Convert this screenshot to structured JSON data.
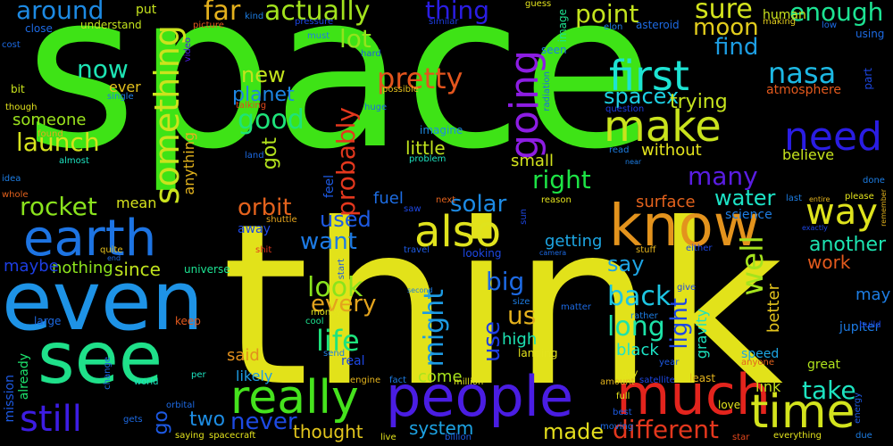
{
  "wordcloud": {
    "background": "#000000",
    "words": [
      {
        "text": "space",
        "color": "#3ee316"
      },
      {
        "text": "think",
        "color": "#e2e21a"
      },
      {
        "text": "even",
        "color": "#1e93e6"
      },
      {
        "text": "see",
        "color": "#1fe08a"
      },
      {
        "text": "people",
        "color": "#4a1de3"
      },
      {
        "text": "much",
        "color": "#e3241d"
      },
      {
        "text": "know",
        "color": "#e3931d"
      },
      {
        "text": "earth",
        "color": "#1d74e3"
      },
      {
        "text": "really",
        "color": "#45e31d"
      },
      {
        "text": "time",
        "color": "#d3e31d"
      },
      {
        "text": "also",
        "color": "#e0e31d"
      },
      {
        "text": "make",
        "color": "#c9e31d"
      },
      {
        "text": "still",
        "color": "#3d1de3"
      },
      {
        "text": "need",
        "color": "#2a1de3"
      },
      {
        "text": "way",
        "color": "#dfe31d"
      },
      {
        "text": "first",
        "color": "#1de3d3"
      },
      {
        "text": "going",
        "color": "#8d1de3"
      },
      {
        "text": "something",
        "color": "#cbe31d"
      },
      {
        "text": "rocket",
        "color": "#8ae31d"
      },
      {
        "text": "launch",
        "color": "#d6e31d"
      },
      {
        "text": "good",
        "color": "#1de37a"
      },
      {
        "text": "nasa",
        "color": "#1db8e3"
      },
      {
        "text": "pretty",
        "color": "#e3551d"
      },
      {
        "text": "actually",
        "color": "#a2e31d"
      },
      {
        "text": "around",
        "color": "#1d8ae3"
      },
      {
        "text": "thing",
        "color": "#2a1de3"
      },
      {
        "text": "far",
        "color": "#e3b01d"
      },
      {
        "text": "point",
        "color": "#c3e31d"
      },
      {
        "text": "sure",
        "color": "#d3e31d"
      },
      {
        "text": "enough",
        "color": "#1de393"
      },
      {
        "text": "moon",
        "color": "#e3cd1d"
      },
      {
        "text": "find",
        "color": "#1d9ee3"
      },
      {
        "text": "now",
        "color": "#1de3b3"
      },
      {
        "text": "lot",
        "color": "#93e31d"
      },
      {
        "text": "new",
        "color": "#c3e31d"
      },
      {
        "text": "planet",
        "color": "#1d86e3"
      },
      {
        "text": "got",
        "color": "#b3e31d"
      },
      {
        "text": "probably",
        "color": "#e3371d"
      },
      {
        "text": "spacex",
        "color": "#1dd1e3"
      },
      {
        "text": "trying",
        "color": "#c5e31d"
      },
      {
        "text": "many",
        "color": "#5a1de3"
      },
      {
        "text": "right",
        "color": "#1de345"
      },
      {
        "text": "solar",
        "color": "#1d8ae3"
      },
      {
        "text": "orbit",
        "color": "#e3621d"
      },
      {
        "text": "used",
        "color": "#1d5ae3"
      },
      {
        "text": "want",
        "color": "#1d7ae3"
      },
      {
        "text": "water",
        "color": "#1de3c6"
      },
      {
        "text": "look",
        "color": "#8ae31d"
      },
      {
        "text": "every",
        "color": "#e3a31d"
      },
      {
        "text": "life",
        "color": "#1de37d"
      },
      {
        "text": "big",
        "color": "#1d6ae3"
      },
      {
        "text": "back",
        "color": "#1dc6e3"
      },
      {
        "text": "say",
        "color": "#1da3e3"
      },
      {
        "text": "us",
        "color": "#e3b01d"
      },
      {
        "text": "long",
        "color": "#1de3a8"
      },
      {
        "text": "might",
        "color": "#1d9be3"
      },
      {
        "text": "use",
        "color": "#1d3ee3"
      },
      {
        "text": "light",
        "color": "#1d47e3"
      },
      {
        "text": "well",
        "color": "#a5e31d"
      },
      {
        "text": "take",
        "color": "#1de3c0"
      },
      {
        "text": "another",
        "color": "#1de3b0"
      },
      {
        "text": "work",
        "color": "#e35a1d"
      },
      {
        "text": "little",
        "color": "#c0e31d"
      },
      {
        "text": "small",
        "color": "#d3e31d"
      },
      {
        "text": "without",
        "color": "#e3e31d"
      },
      {
        "text": "believe",
        "color": "#c6e31d"
      },
      {
        "text": "surface",
        "color": "#e3621d"
      },
      {
        "text": "science",
        "color": "#1d7de3"
      },
      {
        "text": "fuel",
        "color": "#1d6de3"
      },
      {
        "text": "getting",
        "color": "#1da6e3"
      },
      {
        "text": "never",
        "color": "#1d4ae3"
      },
      {
        "text": "two",
        "color": "#1d8de3"
      },
      {
        "text": "thought",
        "color": "#e3c61d"
      },
      {
        "text": "made",
        "color": "#e3dd1d"
      },
      {
        "text": "different",
        "color": "#e3371d"
      },
      {
        "text": "system",
        "color": "#1da3e3"
      },
      {
        "text": "come",
        "color": "#a8e31d"
      },
      {
        "text": "since",
        "color": "#c0e31d"
      },
      {
        "text": "nothing",
        "color": "#8de31d"
      },
      {
        "text": "maybe",
        "color": "#1d3ee3"
      },
      {
        "text": "mean",
        "color": "#d6e31d"
      },
      {
        "text": "someone",
        "color": "#9be31d"
      },
      {
        "text": "human",
        "color": "#c9e31d"
      },
      {
        "text": "atmosphere",
        "color": "#e3591d"
      },
      {
        "text": "black",
        "color": "#1de3c6"
      },
      {
        "text": "high",
        "color": "#1de3b3"
      },
      {
        "text": "better",
        "color": "#e3c31d"
      },
      {
        "text": "gravity",
        "color": "#1de3bd"
      },
      {
        "text": "speed",
        "color": "#1da6e3"
      },
      {
        "text": "link",
        "color": "#c6e31d"
      },
      {
        "text": "may",
        "color": "#1d7de3"
      },
      {
        "text": "jupiter",
        "color": "#1d7ae3"
      },
      {
        "text": "great",
        "color": "#b0e31d"
      },
      {
        "text": "said",
        "color": "#e3901d"
      },
      {
        "text": "likely",
        "color": "#1d9be3"
      },
      {
        "text": "real",
        "color": "#1d47e3"
      },
      {
        "text": "already",
        "color": "#1de36d"
      },
      {
        "text": "mission",
        "color": "#1d5ae3"
      },
      {
        "text": "go",
        "color": "#1d59e3"
      },
      {
        "text": "put",
        "color": "#c6e31d"
      },
      {
        "text": "kind",
        "color": "#1d7de3"
      },
      {
        "text": "pressure",
        "color": "#1d47e3"
      },
      {
        "text": "understand",
        "color": "#c3e31d"
      },
      {
        "text": "similar",
        "color": "#1d3ee3"
      },
      {
        "text": "guess",
        "color": "#e3e31d"
      },
      {
        "text": "image",
        "color": "#1de390"
      },
      {
        "text": "elon",
        "color": "#1d7de3"
      },
      {
        "text": "asteroid",
        "color": "#1d6ae3"
      },
      {
        "text": "making",
        "color": "#e3cd1d"
      },
      {
        "text": "low",
        "color": "#1d6ae3"
      },
      {
        "text": "using",
        "color": "#1d6ae3"
      },
      {
        "text": "part",
        "color": "#1d47e3"
      },
      {
        "text": "close",
        "color": "#1d6ae3"
      },
      {
        "text": "cost",
        "color": "#1d6ae3"
      },
      {
        "text": "bit",
        "color": "#c9e31d"
      },
      {
        "text": "though",
        "color": "#e3e31d"
      },
      {
        "text": "found",
        "color": "#e3aa1d"
      },
      {
        "text": "idea",
        "color": "#1d7de3"
      },
      {
        "text": "almost",
        "color": "#1de3c0"
      },
      {
        "text": "whole",
        "color": "#e3621d"
      },
      {
        "text": "ever",
        "color": "#e3c01d"
      },
      {
        "text": "single",
        "color": "#1d7de3"
      },
      {
        "text": "picture",
        "color": "#e3591d"
      },
      {
        "text": "video",
        "color": "#4a1de3"
      },
      {
        "text": "talking",
        "color": "#e3471d"
      },
      {
        "text": "hard",
        "color": "#1d5ae3"
      },
      {
        "text": "must",
        "color": "#1d7de3"
      },
      {
        "text": "huge",
        "color": "#1d6ae3"
      },
      {
        "text": "possible",
        "color": "#e3c01d"
      },
      {
        "text": "radiation",
        "color": "#1d6ae3"
      },
      {
        "text": "seen",
        "color": "#1d7de3"
      },
      {
        "text": "question",
        "color": "#1d3ee3"
      },
      {
        "text": "read",
        "color": "#1d7de3"
      },
      {
        "text": "near",
        "color": "#1d7de3"
      },
      {
        "text": "imagine",
        "color": "#1d8ae3"
      },
      {
        "text": "problem",
        "color": "#1de3c0"
      },
      {
        "text": "land",
        "color": "#1d6ae3"
      },
      {
        "text": "anything",
        "color": "#e3b31d"
      },
      {
        "text": "feel",
        "color": "#1d5ae3"
      },
      {
        "text": "shuttle",
        "color": "#e3a31d"
      },
      {
        "text": "away",
        "color": "#1d47e3"
      },
      {
        "text": "shit",
        "color": "#e3371d"
      },
      {
        "text": "universe",
        "color": "#1de393"
      },
      {
        "text": "next",
        "color": "#e3621d"
      },
      {
        "text": "saw",
        "color": "#1d47e3"
      },
      {
        "text": "reason",
        "color": "#e3e31d"
      },
      {
        "text": "sun",
        "color": "#1d47e3"
      },
      {
        "text": "entire",
        "color": "#e3b31d"
      },
      {
        "text": "please",
        "color": "#e3e31d"
      },
      {
        "text": "last",
        "color": "#1d7de3"
      },
      {
        "text": "exactly",
        "color": "#1d47e3"
      },
      {
        "text": "remember",
        "color": "#e3b31d"
      },
      {
        "text": "done",
        "color": "#1d7de3"
      },
      {
        "text": "either",
        "color": "#1d47e3"
      },
      {
        "text": "stuff",
        "color": "#e3b31d"
      },
      {
        "text": "camera",
        "color": "#1d6ae3"
      },
      {
        "text": "travel",
        "color": "#1d5ae3"
      },
      {
        "text": "looking",
        "color": "#1d47e3"
      },
      {
        "text": "start",
        "color": "#1d5ae3"
      },
      {
        "text": "quite",
        "color": "#e3c01d"
      },
      {
        "text": "end",
        "color": "#1d6ae3"
      },
      {
        "text": "large",
        "color": "#1d6ae3"
      },
      {
        "text": "keep",
        "color": "#e3591d"
      },
      {
        "text": "cool",
        "color": "#1de390"
      },
      {
        "text": "money",
        "color": "#e3e31d"
      },
      {
        "text": "second",
        "color": "#1d7de3"
      },
      {
        "text": "size",
        "color": "#1d7de3"
      },
      {
        "text": "matter",
        "color": "#1d6ae3"
      },
      {
        "text": "give",
        "color": "#1d47e3"
      },
      {
        "text": "rather",
        "color": "#1d7de3"
      },
      {
        "text": "build",
        "color": "#1d47e3"
      },
      {
        "text": "year",
        "color": "#1d5ae3"
      },
      {
        "text": "send",
        "color": "#1d7de3"
      },
      {
        "text": "landing",
        "color": "#e3e31d"
      },
      {
        "text": "per",
        "color": "#1de3c0"
      },
      {
        "text": "world",
        "color": "#1de3c0"
      },
      {
        "text": "change",
        "color": "#1d6ae3"
      },
      {
        "text": "orbital",
        "color": "#1d6ae3"
      },
      {
        "text": "gets",
        "color": "#1d6ae3"
      },
      {
        "text": "engine",
        "color": "#e3b31d"
      },
      {
        "text": "fact",
        "color": "#1d7de3"
      },
      {
        "text": "million",
        "color": "#e3e31d"
      },
      {
        "text": "amount",
        "color": "#e3b31d"
      },
      {
        "text": "satellite",
        "color": "#1d47e3"
      },
      {
        "text": "day",
        "color": "#e3e31d"
      },
      {
        "text": "full",
        "color": "#e3e31d"
      },
      {
        "text": "best",
        "color": "#1d5ae3"
      },
      {
        "text": "moving",
        "color": "#1d6ae3"
      },
      {
        "text": "least",
        "color": "#e3b31d"
      },
      {
        "text": "love",
        "color": "#e3e31d"
      },
      {
        "text": "anyone",
        "color": "#e3621d"
      },
      {
        "text": "star",
        "color": "#e3471d"
      },
      {
        "text": "everything",
        "color": "#e3e31d"
      },
      {
        "text": "energy",
        "color": "#1d5ae3"
      },
      {
        "text": "due",
        "color": "#1d7de3"
      },
      {
        "text": "live",
        "color": "#e3e31d"
      },
      {
        "text": "billion",
        "color": "#1d5ae3"
      },
      {
        "text": "saying",
        "color": "#e3e31d"
      },
      {
        "text": "spacecraft",
        "color": "#e3e31d"
      }
    ]
  }
}
